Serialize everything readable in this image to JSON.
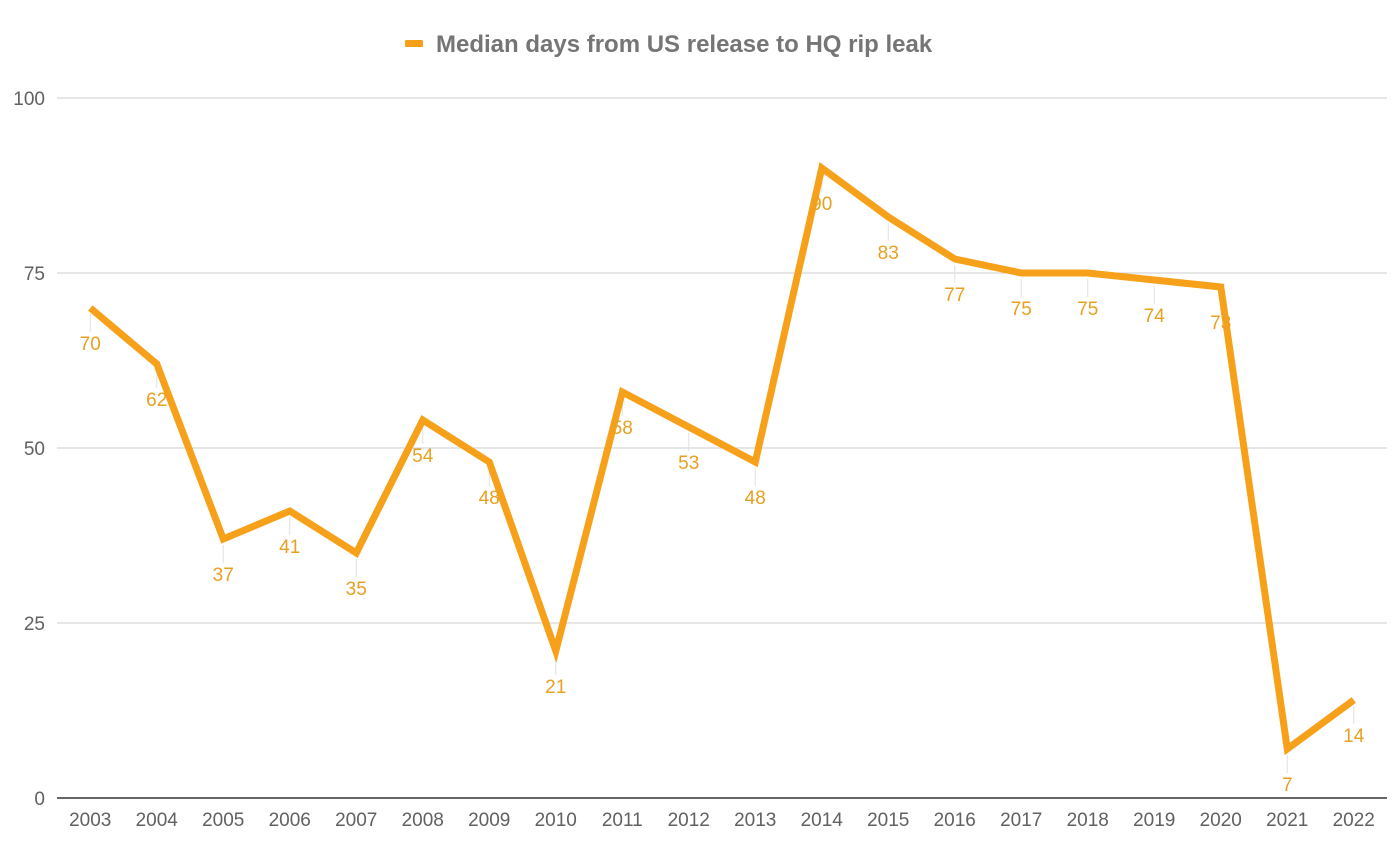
{
  "chart_data": {
    "type": "line",
    "title": "",
    "xlabel": "",
    "ylabel": "",
    "categories": [
      "2003",
      "2004",
      "2005",
      "2006",
      "2007",
      "2008",
      "2009",
      "2010",
      "2011",
      "2012",
      "2013",
      "2014",
      "2015",
      "2016",
      "2017",
      "2018",
      "2019",
      "2020",
      "2021",
      "2022"
    ],
    "series": [
      {
        "name": "Median days from US release to HQ rip leak",
        "values": [
          70,
          62,
          37,
          41,
          35,
          54,
          48,
          21,
          58,
          53,
          48,
          90,
          83,
          77,
          75,
          75,
          74,
          73,
          7,
          14
        ],
        "color": "#f7a11a",
        "data_labels": [
          "70",
          "62",
          "37",
          "41",
          "35",
          "54",
          "48",
          "21",
          "58",
          "53",
          "48",
          "90",
          "83",
          "77",
          "75",
          "75",
          "74",
          "73",
          "7",
          "14"
        ]
      }
    ],
    "ylim": [
      0,
      100
    ],
    "yticks": [
      "0",
      "25",
      "50",
      "75",
      "100"
    ],
    "grid": true,
    "legend": "top-center",
    "label_color": "#e8a020"
  }
}
